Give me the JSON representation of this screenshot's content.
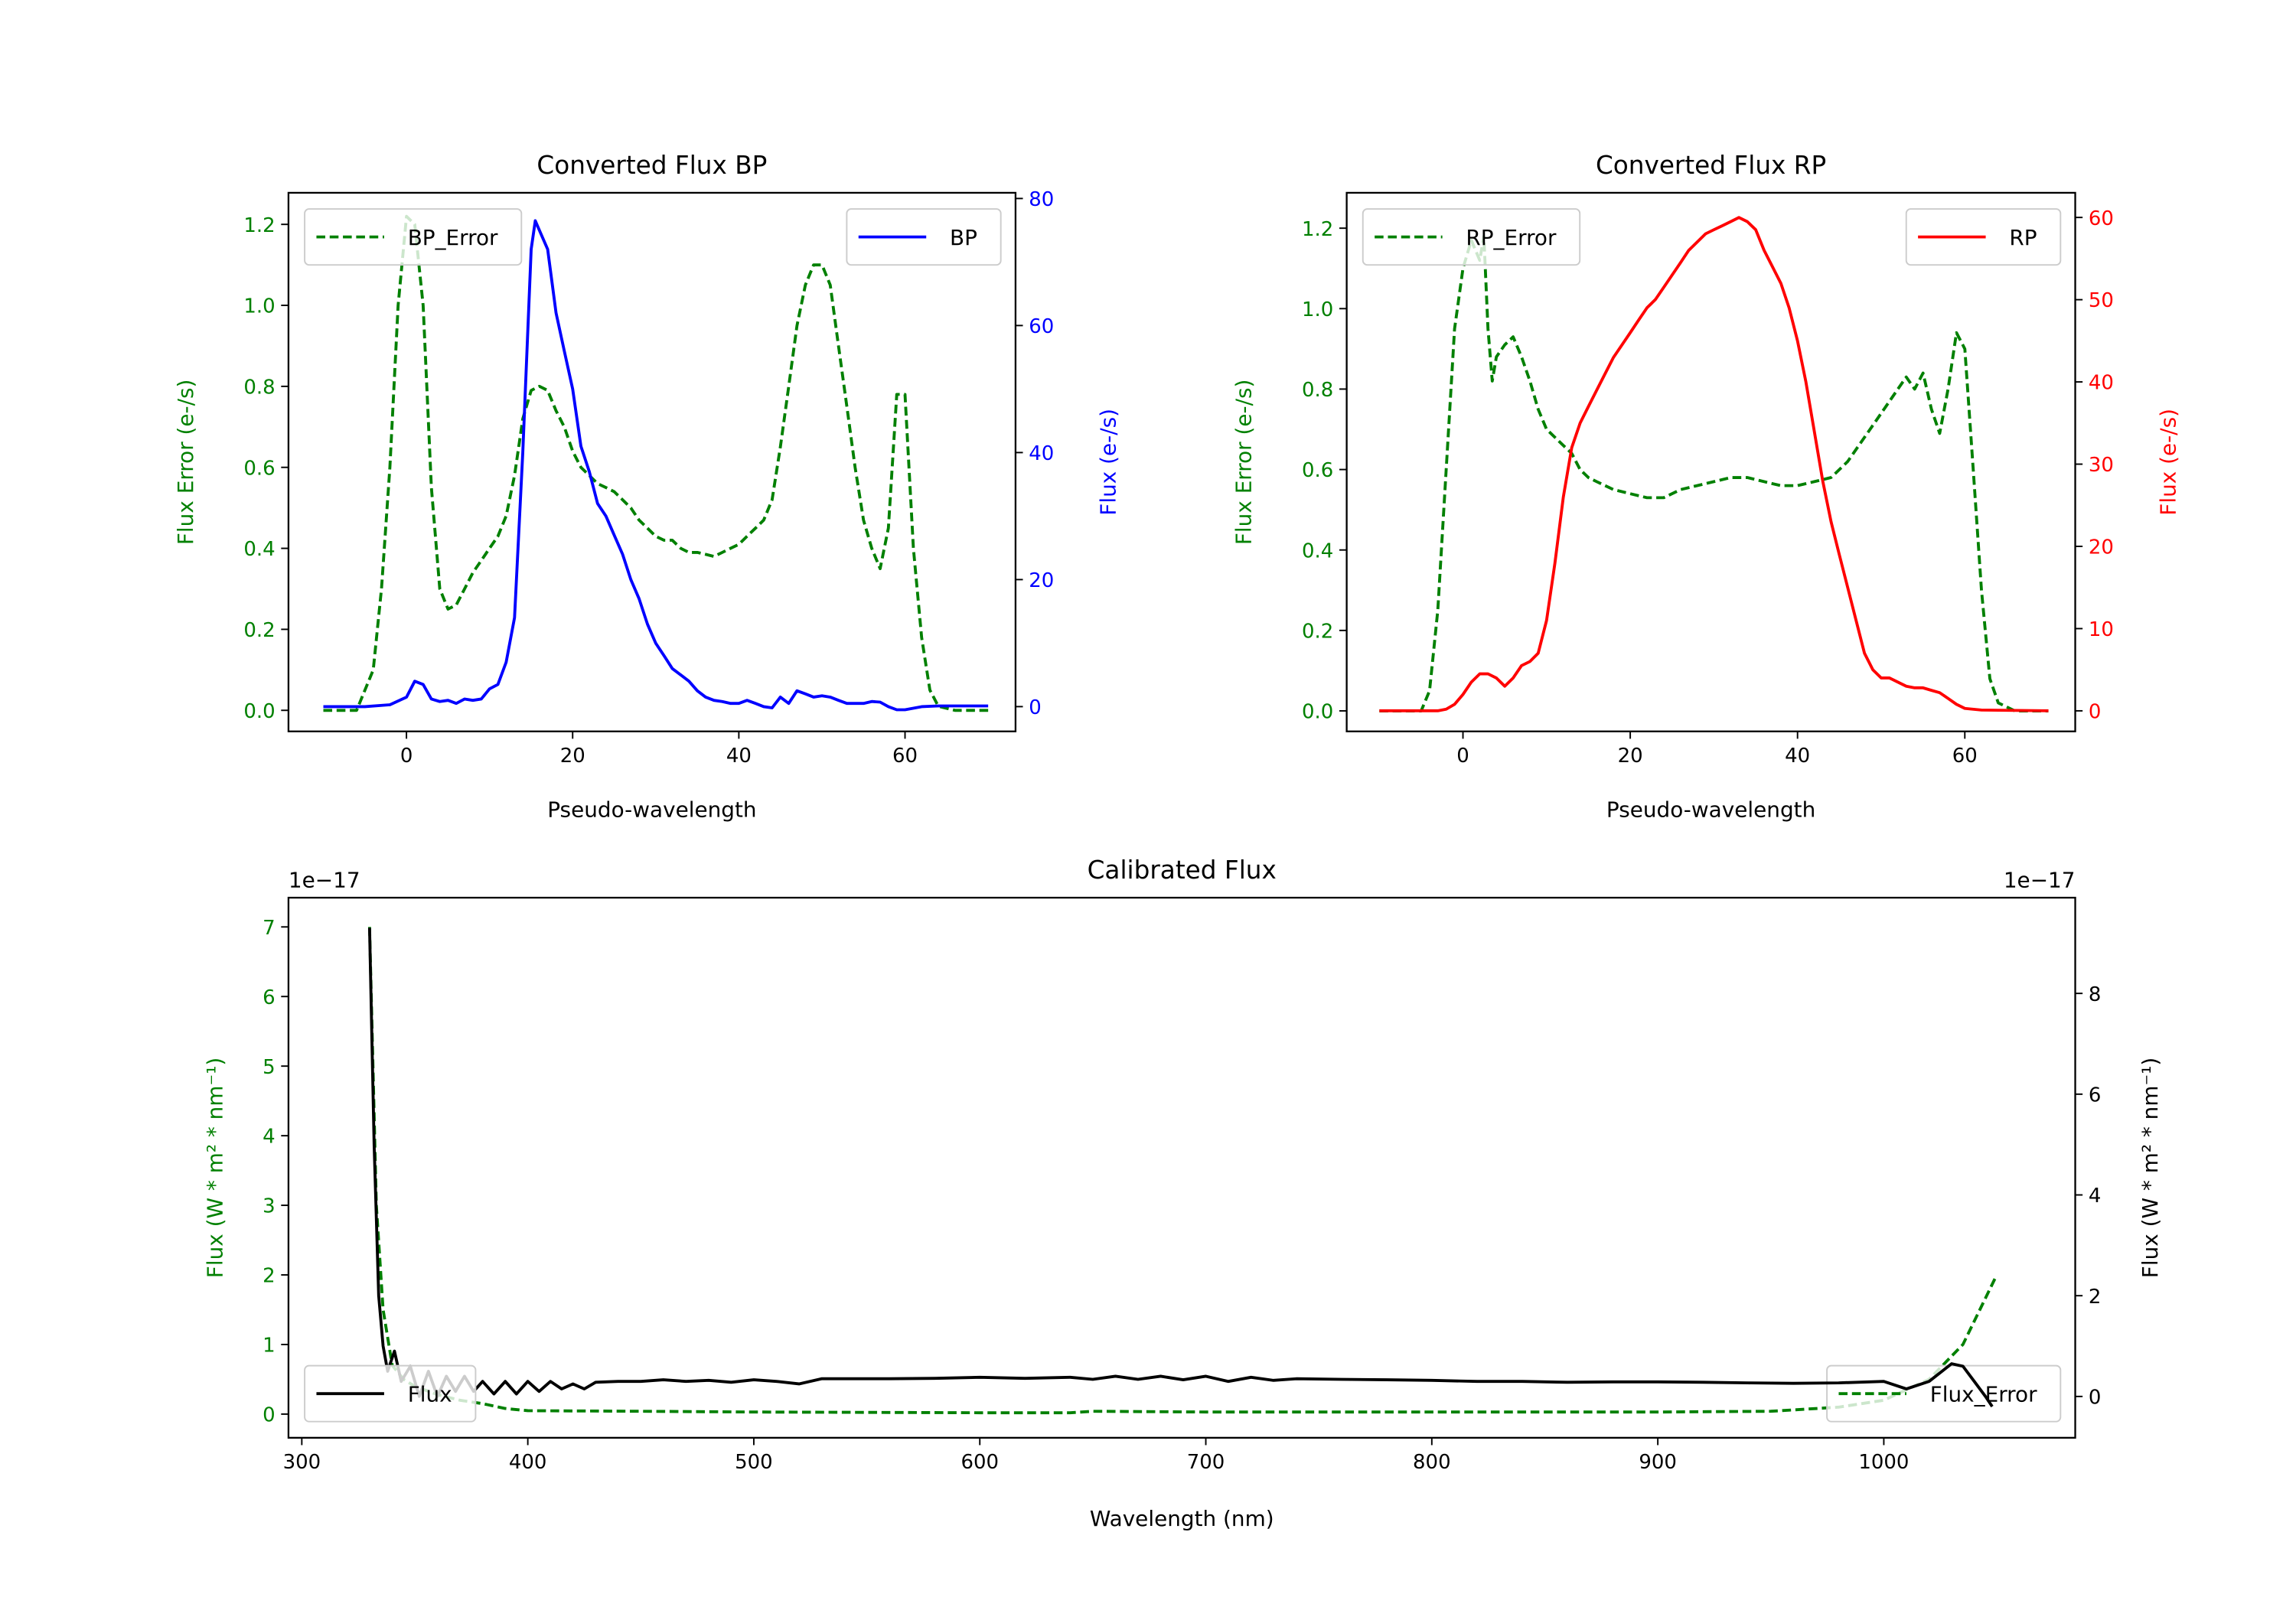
{
  "chart_data": [
    {
      "type": "line",
      "title": "Converted Flux BP",
      "xlabel": "Pseudo-wavelength",
      "xlim": [
        -14.2,
        73.3
      ],
      "xticks": [
        0,
        20,
        40,
        60
      ],
      "y_left": {
        "label": "Flux Error (e-/s)",
        "color": "#008000",
        "lim": [
          -0.052,
          1.278
        ],
        "ticks": [
          "0.0",
          "0.2",
          "0.4",
          "0.6",
          "0.8",
          "1.0",
          "1.2"
        ],
        "offset": ""
      },
      "y_right": {
        "label": "Flux (e-/s)",
        "color": "#0000ff",
        "lim": [
          -3.9,
          80.9
        ],
        "ticks": [
          "0",
          "20",
          "40",
          "60",
          "80"
        ],
        "offset": ""
      },
      "series": [
        {
          "name": "BP_Error",
          "axis": "left",
          "color": "#008000",
          "style": "dashed",
          "legend": "upper left",
          "x": [
            -10,
            -6,
            -4,
            -3,
            -2,
            -1,
            0,
            1,
            2,
            3,
            4,
            5,
            6,
            7,
            8,
            9,
            10,
            11,
            12,
            13,
            14,
            15,
            16,
            17,
            18,
            19,
            20,
            21,
            22,
            23,
            24,
            25,
            26,
            27,
            28,
            29,
            30,
            31,
            32,
            33,
            34,
            35,
            36,
            37,
            38,
            39,
            40,
            41,
            42,
            43,
            44,
            45,
            46,
            47,
            48,
            49,
            50,
            51,
            52,
            53,
            54,
            55,
            56,
            57,
            58,
            59,
            60,
            61,
            62,
            63,
            64,
            66,
            70
          ],
          "y": [
            0,
            0,
            0.1,
            0.3,
            0.6,
            1.0,
            1.22,
            1.2,
            1.0,
            0.55,
            0.3,
            0.25,
            0.26,
            0.3,
            0.34,
            0.37,
            0.4,
            0.43,
            0.48,
            0.58,
            0.72,
            0.79,
            0.8,
            0.79,
            0.74,
            0.7,
            0.64,
            0.6,
            0.58,
            0.56,
            0.55,
            0.54,
            0.52,
            0.5,
            0.47,
            0.45,
            0.43,
            0.42,
            0.42,
            0.4,
            0.39,
            0.39,
            0.385,
            0.38,
            0.39,
            0.4,
            0.41,
            0.43,
            0.45,
            0.47,
            0.52,
            0.65,
            0.8,
            0.95,
            1.05,
            1.1,
            1.1,
            1.05,
            0.9,
            0.75,
            0.6,
            0.47,
            0.4,
            0.35,
            0.45,
            0.78,
            0.78,
            0.4,
            0.18,
            0.05,
            0.01,
            0,
            0
          ]
        },
        {
          "name": "BP",
          "axis": "right",
          "color": "#0000ff",
          "style": "solid",
          "legend": "upper right",
          "x": [
            -10,
            -5,
            -2,
            0,
            1,
            2,
            3,
            4,
            5,
            6,
            7,
            8,
            9,
            10,
            11,
            12,
            13,
            14,
            15,
            15.5,
            16,
            17,
            18,
            19,
            20,
            21,
            22,
            23,
            24,
            25,
            26,
            27,
            28,
            29,
            30,
            31,
            32,
            33,
            34,
            35,
            36,
            37,
            38,
            39,
            40,
            41,
            42,
            43,
            44,
            45,
            46,
            47,
            48,
            49,
            50,
            51,
            52,
            53,
            54,
            55,
            56,
            57,
            58,
            59,
            60,
            62,
            64,
            70
          ],
          "y": [
            0,
            0,
            0.3,
            1.5,
            4,
            3.5,
            1.2,
            0.8,
            1,
            0.5,
            1.2,
            1,
            1.2,
            2.8,
            3.5,
            7,
            14,
            40,
            72,
            76.5,
            75,
            72,
            62,
            56,
            50,
            41,
            37,
            32,
            30,
            27,
            24,
            20,
            17,
            13,
            10,
            8,
            6,
            5,
            4,
            2.5,
            1.5,
            1,
            0.8,
            0.5,
            0.5,
            1,
            0.5,
            0,
            -0.2,
            1.5,
            0.5,
            2.5,
            2,
            1.5,
            1.7,
            1.5,
            1,
            0.5,
            0.5,
            0.5,
            0.8,
            0.7,
            0,
            -0.5,
            -0.5,
            0,
            0.1,
            0.1
          ]
        }
      ]
    },
    {
      "type": "line",
      "title": "Converted Flux RP",
      "xlabel": "Pseudo-wavelength",
      "xlim": [
        -13.9,
        73.2
      ],
      "xticks": [
        0,
        20,
        40,
        60
      ],
      "y_left": {
        "label": "Flux Error (e-/s)",
        "color": "#008000",
        "lim": [
          -0.051,
          1.288
        ],
        "ticks": [
          "0.0",
          "0.2",
          "0.4",
          "0.6",
          "0.8",
          "1.0",
          "1.2"
        ],
        "offset": ""
      },
      "y_right": {
        "label": "Flux (e-/s)",
        "color": "#ff0000",
        "lim": [
          -2.5,
          63.0
        ],
        "ticks": [
          "0",
          "10",
          "20",
          "30",
          "40",
          "50",
          "60"
        ],
        "offset": ""
      },
      "series": [
        {
          "name": "RP_Error",
          "axis": "left",
          "color": "#008000",
          "style": "dashed",
          "legend": "upper left",
          "x": [
            -10,
            -5,
            -4,
            -3,
            -2,
            -1,
            0,
            1,
            2,
            2.5,
            3,
            3.5,
            4,
            5,
            6,
            7,
            8,
            9,
            10,
            11,
            12,
            13,
            14,
            15,
            16,
            17,
            18,
            20,
            22,
            24,
            26,
            28,
            30,
            32,
            34,
            36,
            38,
            40,
            42,
            44,
            46,
            48,
            50,
            52,
            53,
            54,
            55,
            56,
            57,
            58,
            59,
            60,
            61,
            62,
            63,
            64,
            66,
            70
          ],
          "y": [
            0,
            0,
            0.05,
            0.25,
            0.6,
            0.95,
            1.1,
            1.17,
            1.12,
            1.18,
            0.95,
            0.82,
            0.88,
            0.91,
            0.93,
            0.88,
            0.82,
            0.75,
            0.7,
            0.68,
            0.66,
            0.64,
            0.6,
            0.58,
            0.57,
            0.56,
            0.55,
            0.54,
            0.53,
            0.53,
            0.55,
            0.56,
            0.57,
            0.58,
            0.58,
            0.57,
            0.56,
            0.56,
            0.57,
            0.58,
            0.62,
            0.68,
            0.74,
            0.8,
            0.83,
            0.8,
            0.84,
            0.75,
            0.69,
            0.8,
            0.94,
            0.9,
            0.6,
            0.3,
            0.08,
            0.02,
            0,
            0
          ]
        },
        {
          "name": "RP",
          "axis": "right",
          "color": "#ff0000",
          "style": "solid",
          "legend": "upper right",
          "x": [
            -10,
            -3,
            -2,
            -1,
            0,
            1,
            2,
            3,
            4,
            5,
            6,
            7,
            8,
            9,
            10,
            11,
            12,
            13,
            14,
            15,
            16,
            17,
            18,
            19,
            20,
            21,
            22,
            23,
            24,
            25,
            26,
            27,
            28,
            29,
            30,
            31,
            32,
            33,
            34,
            35,
            36,
            37,
            38,
            39,
            40,
            41,
            42,
            43,
            44,
            45,
            46,
            47,
            48,
            49,
            50,
            51,
            52,
            53,
            54,
            55,
            56,
            57,
            58,
            59,
            60,
            62,
            70
          ],
          "y": [
            0,
            0,
            0.2,
            0.8,
            2,
            3.5,
            4.5,
            4.5,
            4,
            3,
            4,
            5.5,
            6,
            7,
            11,
            18,
            26,
            32,
            35,
            37,
            39,
            41,
            43,
            44.5,
            46,
            47.5,
            49,
            50,
            51.5,
            53,
            54.5,
            56,
            57,
            58,
            58.5,
            59,
            59.5,
            60,
            59.5,
            58.5,
            56,
            54,
            52,
            49,
            45,
            40,
            34,
            28,
            23,
            19,
            15,
            11,
            7,
            5,
            4,
            4,
            3.5,
            3,
            2.8,
            2.8,
            2.5,
            2.2,
            1.5,
            0.8,
            0.3,
            0.1,
            0
          ]
        }
      ]
    },
    {
      "type": "line",
      "title": "Calibrated Flux",
      "xlabel": "Wavelength (nm)",
      "xlim": [
        294.1,
        1084.7
      ],
      "xticks": [
        300,
        400,
        500,
        600,
        700,
        800,
        900,
        1000
      ],
      "y_left": {
        "label": "Flux (W * m² * nm⁻¹)",
        "color": "#008000",
        "lim": [
          -0.34,
          7.42
        ],
        "ticks": [
          "0",
          "1",
          "2",
          "3",
          "4",
          "5",
          "6",
          "7"
        ],
        "offset": "1e−17"
      },
      "y_right": {
        "label": "Flux (W * m² * nm⁻¹)",
        "color": "#000000",
        "lim": [
          -0.82,
          9.9
        ],
        "ticks": [
          "0",
          "2",
          "4",
          "6",
          "8"
        ],
        "offset": "1e−17"
      },
      "series": [
        {
          "name": "Flux_Error",
          "axis": "left",
          "color": "#008000",
          "style": "dashed",
          "legend": "lower right",
          "x": [
            330,
            333,
            336,
            340,
            345,
            350,
            360,
            370,
            380,
            390,
            400,
            450,
            500,
            600,
            640,
            650,
            700,
            800,
            900,
            950,
            980,
            1000,
            1020,
            1035,
            1050
          ],
          "y": [
            7.0,
            3.0,
            1.5,
            0.7,
            0.5,
            0.4,
            0.28,
            0.2,
            0.15,
            0.08,
            0.05,
            0.04,
            0.03,
            0.02,
            0.02,
            0.04,
            0.03,
            0.03,
            0.03,
            0.04,
            0.1,
            0.2,
            0.5,
            1.0,
            2.0
          ]
        },
        {
          "name": "Flux",
          "axis": "right",
          "color": "#000000",
          "style": "solid",
          "legend": "lower left",
          "x": [
            330,
            332,
            334,
            336,
            338,
            341,
            344,
            348,
            352,
            356,
            360,
            364,
            368,
            372,
            376,
            380,
            385,
            390,
            395,
            400,
            405,
            410,
            415,
            420,
            425,
            430,
            440,
            450,
            460,
            470,
            480,
            490,
            500,
            510,
            520,
            530,
            540,
            560,
            580,
            600,
            620,
            640,
            650,
            660,
            670,
            680,
            690,
            700,
            710,
            720,
            730,
            740,
            760,
            780,
            800,
            820,
            840,
            860,
            880,
            900,
            920,
            940,
            960,
            980,
            1000,
            1010,
            1020,
            1030,
            1035,
            1040,
            1045,
            1048
          ],
          "y": [
            9.3,
            5.0,
            2.0,
            1.0,
            0.5,
            0.9,
            0.3,
            0.6,
            0.0,
            0.5,
            0.0,
            0.4,
            0.1,
            0.4,
            0.1,
            0.3,
            0.05,
            0.3,
            0.05,
            0.3,
            0.1,
            0.3,
            0.15,
            0.25,
            0.15,
            0.28,
            0.3,
            0.3,
            0.33,
            0.3,
            0.32,
            0.28,
            0.33,
            0.3,
            0.25,
            0.35,
            0.35,
            0.35,
            0.36,
            0.38,
            0.36,
            0.38,
            0.34,
            0.4,
            0.34,
            0.4,
            0.33,
            0.4,
            0.3,
            0.38,
            0.32,
            0.35,
            0.34,
            0.33,
            0.32,
            0.3,
            0.3,
            0.28,
            0.29,
            0.29,
            0.28,
            0.27,
            0.26,
            0.27,
            0.3,
            0.15,
            0.3,
            0.65,
            0.6,
            0.3,
            0.0,
            -0.2
          ]
        }
      ]
    }
  ]
}
